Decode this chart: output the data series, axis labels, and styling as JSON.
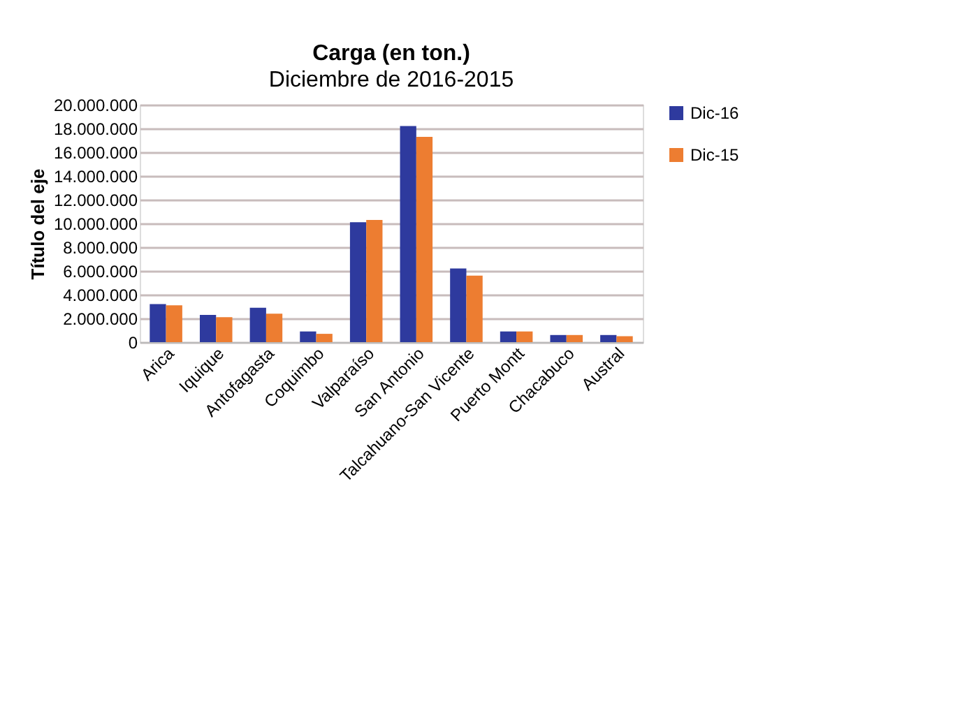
{
  "chart_data": {
    "type": "bar",
    "title": "Carga (en ton.)",
    "subtitle": "Diciembre de 2016-2015",
    "ylabel": "Título del eje",
    "categories": [
      "Arica",
      "Iquique",
      "Antofagasta",
      "Coquimbo",
      "Valparaíso",
      "San Antonio",
      "Talcahuano-San Vicente",
      "Puerto Montt",
      "Chacabuco",
      "Austral"
    ],
    "series": [
      {
        "name": "Dic-16",
        "color": "#2e3a9e",
        "values": [
          3200000,
          2300000,
          2900000,
          900000,
          10100000,
          18200000,
          6200000,
          900000,
          600000,
          600000
        ]
      },
      {
        "name": "Dic-15",
        "color": "#ed7d31",
        "values": [
          3100000,
          2100000,
          2400000,
          700000,
          10300000,
          17300000,
          5600000,
          900000,
          600000,
          500000
        ]
      }
    ],
    "ylim": [
      0,
      20000000
    ],
    "yticks": [
      {
        "value": 0,
        "label": "0"
      },
      {
        "value": 2000000,
        "label": "2.000.000"
      },
      {
        "value": 4000000,
        "label": "4.000.000"
      },
      {
        "value": 6000000,
        "label": "6.000.000"
      },
      {
        "value": 8000000,
        "label": "8.000.000"
      },
      {
        "value": 10000000,
        "label": "10.000.000"
      },
      {
        "value": 12000000,
        "label": "12.000.000"
      },
      {
        "value": 14000000,
        "label": "14.000.000"
      },
      {
        "value": 16000000,
        "label": "16.000.000"
      },
      {
        "value": 18000000,
        "label": "18.000.000"
      },
      {
        "value": 20000000,
        "label": "20.000.000"
      }
    ],
    "grid": "y",
    "legend": "right"
  }
}
